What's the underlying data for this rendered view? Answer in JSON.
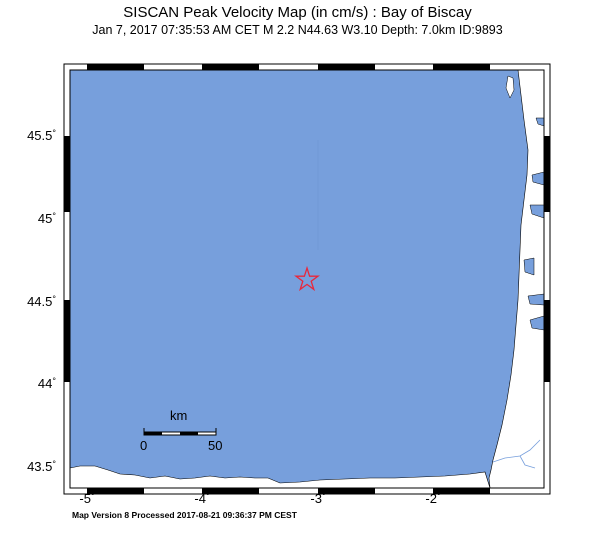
{
  "header": {
    "title": "SISCAN Peak Velocity Map (in cm/s) : Bay of Biscay",
    "event_info": "Jan  7, 2017 07:35:53 AM CET   M 2.2   N44.63 W3.10   Depth: 7.0km   ID:9893"
  },
  "axes": {
    "lat_labels": [
      "45.5",
      "45",
      "44.5",
      "44",
      "43.5"
    ],
    "lon_labels": [
      "-5",
      "-4",
      "-3",
      "-2"
    ],
    "degree_symbol": "°"
  },
  "scale_bar": {
    "unit": "km",
    "start": "0",
    "end": "50"
  },
  "epicenter": {
    "lat": 44.63,
    "lon": -3.1,
    "marker": "star-icon",
    "color": "#e8283c"
  },
  "map_colors": {
    "sea": "#779fdc",
    "land": "#ffffff",
    "border": "#000000"
  },
  "footer": {
    "text": "Map Version 8 Processed 2017-08-21 09:36:37 PM CEST"
  }
}
